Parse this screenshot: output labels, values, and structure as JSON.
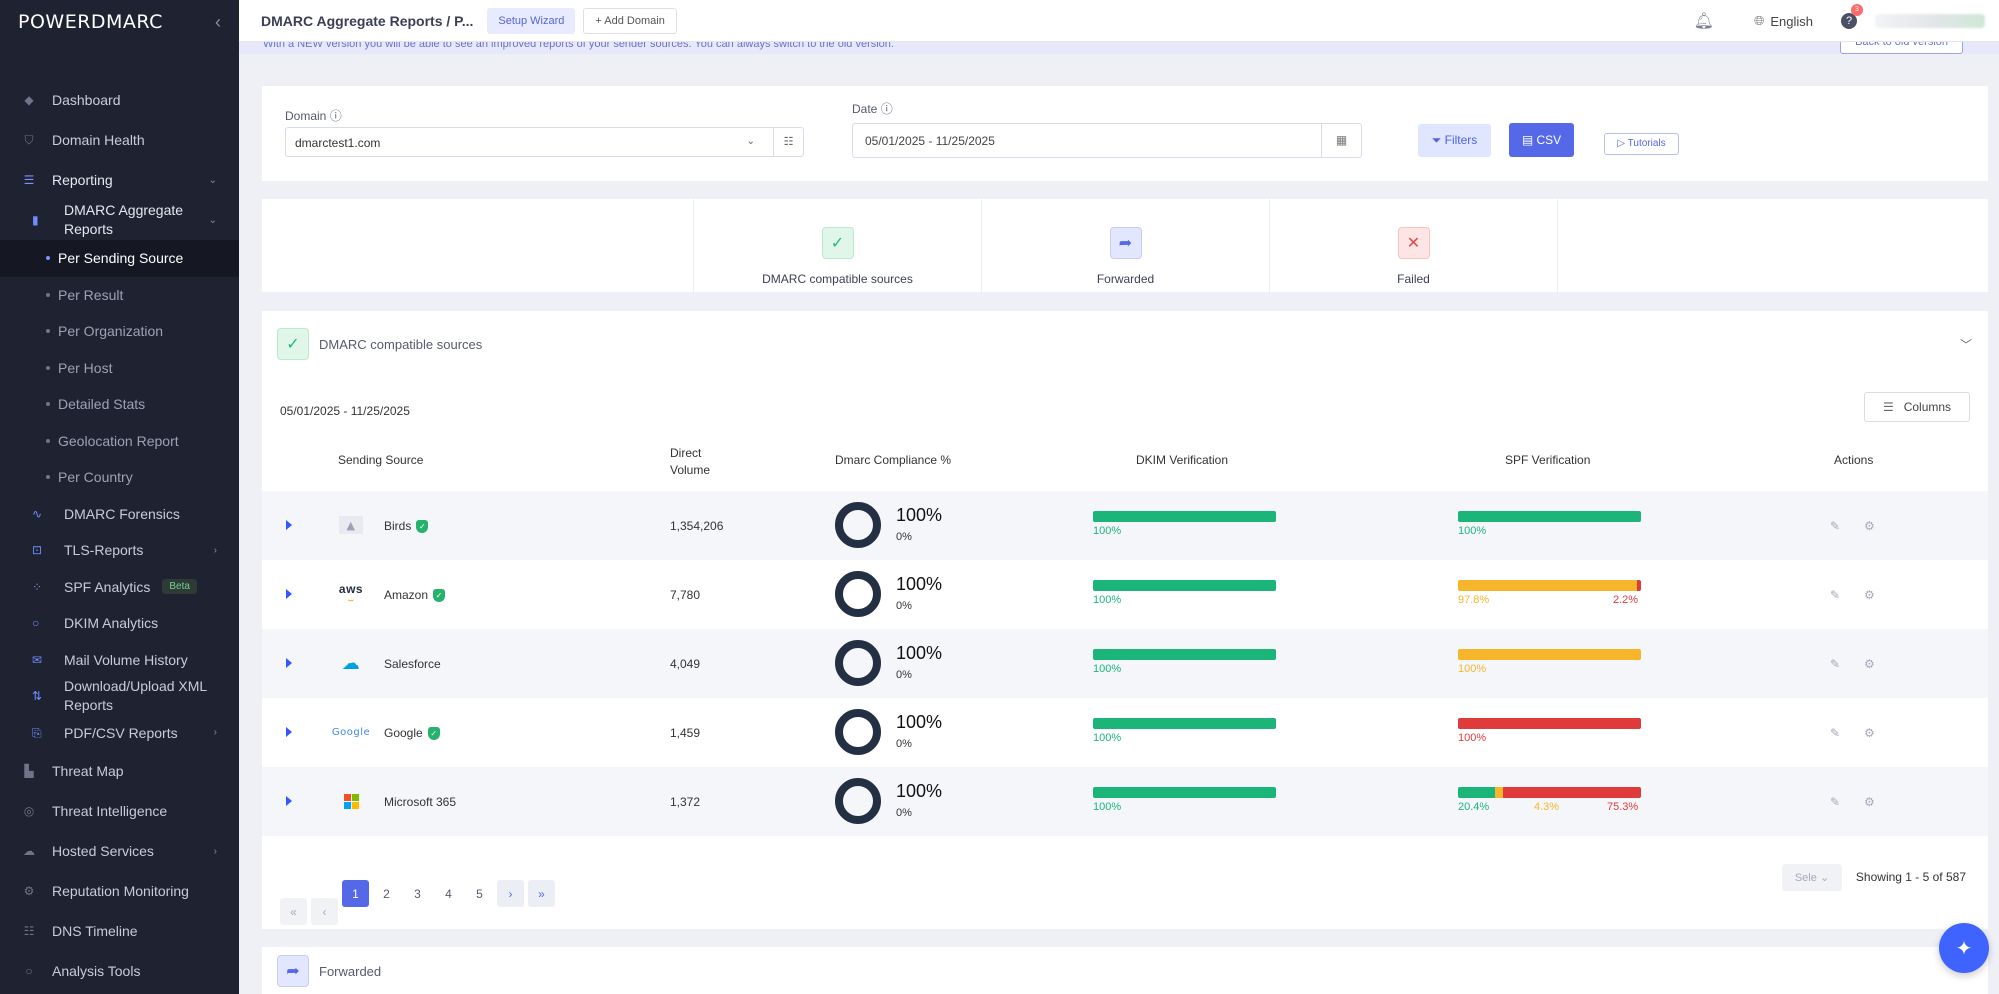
{
  "app": {
    "logo": "POWERDMARC",
    "collapse_icon": "chevron-left-icon"
  },
  "sidebar": {
    "items": [
      {
        "label": "Dashboard",
        "icon": "dashboard-icon"
      },
      {
        "label": "Domain Health",
        "icon": "shield-check-icon"
      },
      {
        "label": "Reporting",
        "icon": "reporting-icon"
      }
    ],
    "dmarc_aggregate_label": "DMARC Aggregate Reports",
    "aggregate_children": [
      "Per Sending Source",
      "Per Result",
      "Per Organization",
      "Per Host",
      "Detailed Stats",
      "Geolocation Report",
      "Per Country"
    ],
    "reporting_rest": [
      {
        "label": "DMARC Forensics"
      },
      {
        "label": "TLS-Reports"
      },
      {
        "label": "SPF Analytics",
        "badge": "Beta"
      },
      {
        "label": "DKIM Analytics"
      },
      {
        "label": "Mail Volume History"
      },
      {
        "label": "Download/Upload XML Reports"
      },
      {
        "label": "PDF/CSV Reports"
      }
    ],
    "bottom": [
      {
        "label": "Threat Map"
      },
      {
        "label": "Threat Intelligence"
      },
      {
        "label": "Hosted Services"
      },
      {
        "label": "Reputation Monitoring"
      },
      {
        "label": "DNS Timeline"
      },
      {
        "label": "Analysis Tools"
      }
    ]
  },
  "topbar": {
    "breadcrumb": "DMARC Aggregate Reports / P...",
    "setup_wizard": "Setup Wizard",
    "add_domain": "Add Domain",
    "language": "English",
    "notif_count": "3"
  },
  "notice": {
    "text": "With a NEW version you will be able to see an improved reports of your sender sources. You can always switch to the old version.",
    "back_label": "Back to old version"
  },
  "filters": {
    "domain_label": "Domain",
    "domain_value": "dmarctest1.com",
    "date_label": "Date",
    "date_value": "05/01/2025 - 11/25/2025",
    "filters_btn": "Filters",
    "csv_btn": "CSV",
    "tutorials_btn": "Tutorials"
  },
  "summary": {
    "compatible": "DMARC compatible sources",
    "forwarded": "Forwarded",
    "failed": "Failed"
  },
  "section": {
    "title": "DMARC compatible sources",
    "range": "05/01/2025 - 11/25/2025",
    "columns_btn": "Columns",
    "forwarded_title": "Forwarded"
  },
  "table": {
    "headers": {
      "source": "Sending Source",
      "volume": "Direct Volume",
      "compliance": "Dmarc Compliance %",
      "dkim": "DKIM Verification",
      "spf": "SPF Verification",
      "actions": "Actions"
    },
    "rows": [
      {
        "name": "Birds",
        "logo": "image-placeholder-icon",
        "verified": true,
        "volume": "1,354,206",
        "compliance": "100%",
        "compliance_sub": "0%",
        "dkim": [
          {
            "pct": 100,
            "label": "100%",
            "color": "#1bb57a"
          }
        ],
        "spf": [
          {
            "pct": 100,
            "label": "100%",
            "color": "#1bb57a"
          }
        ]
      },
      {
        "name": "Amazon",
        "logo": "aws-logo-icon",
        "verified": true,
        "volume": "7,780",
        "compliance": "100%",
        "compliance_sub": "0%",
        "dkim": [
          {
            "pct": 100,
            "label": "100%",
            "color": "#1bb57a"
          }
        ],
        "spf": [
          {
            "pct": 97.8,
            "label": "97.8%",
            "color": "#f7b52b"
          },
          {
            "pct": 2.2,
            "label": "2.2%",
            "color": "#e03b3b"
          }
        ]
      },
      {
        "name": "Salesforce",
        "logo": "salesforce-cloud-icon",
        "verified": false,
        "volume": "4,049",
        "compliance": "100%",
        "compliance_sub": "0%",
        "dkim": [
          {
            "pct": 100,
            "label": "100%",
            "color": "#1bb57a"
          }
        ],
        "spf": [
          {
            "pct": 100,
            "label": "100%",
            "color": "#f7b52b"
          }
        ]
      },
      {
        "name": "Google",
        "logo": "google-logo-icon",
        "verified": true,
        "volume": "1,459",
        "compliance": "100%",
        "compliance_sub": "0%",
        "dkim": [
          {
            "pct": 100,
            "label": "100%",
            "color": "#1bb57a"
          }
        ],
        "spf": [
          {
            "pct": 100,
            "label": "100%",
            "color": "#e03b3b"
          }
        ]
      },
      {
        "name": "Microsoft 365",
        "logo": "microsoft-logo-icon",
        "verified": false,
        "volume": "1,372",
        "compliance": "100%",
        "compliance_sub": "0%",
        "dkim": [
          {
            "pct": 100,
            "label": "100%",
            "color": "#1bb57a"
          }
        ],
        "spf": [
          {
            "pct": 20.4,
            "label": "20.4%",
            "color": "#1bb57a"
          },
          {
            "pct": 4.3,
            "label": "4.3%",
            "color": "#f7b52b"
          },
          {
            "pct": 75.3,
            "label": "75.3%",
            "color": "#e03b3b"
          }
        ]
      }
    ]
  },
  "pagination": {
    "pages": [
      "1",
      "2",
      "3",
      "4",
      "5"
    ],
    "current": "1",
    "page_size": "Sele",
    "showing": "Showing 1 - 5 of 587"
  }
}
